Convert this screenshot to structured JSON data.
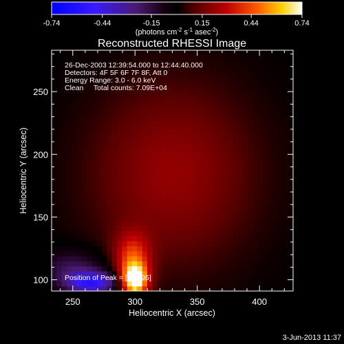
{
  "chart_data": {
    "type": "heatmap",
    "title": "Reconstructed RHESSI Image",
    "xlabel": "Heliocentric X (arcsec)",
    "ylabel": "Heliocentric Y (arcsec)",
    "xlim": [
      233,
      427
    ],
    "ylim": [
      91,
      283
    ],
    "x_ticks": [
      250,
      300,
      350,
      400
    ],
    "y_ticks": [
      100,
      150,
      200,
      250
    ],
    "colorbar": {
      "ticks": [
        "-0.74",
        "-0.44",
        "-0.15",
        "0.15",
        "0.44",
        "0.74"
      ],
      "range": [
        -0.74,
        0.74
      ],
      "unit_label": "(photons cm",
      "unit_sup1": "-2",
      "unit_mid": " s",
      "unit_sup2": "-1",
      "unit_mid2": " asec",
      "unit_sup3": "-2",
      "unit_end": ")"
    },
    "annotations": [
      "26-Dec-2003 12:39:54.000 to 12:44:40.000",
      "Detectors: 4F 5F 6F 7F 8F, Att 0",
      "Energy Range: 3.0 - 6.0 keV",
      "Clean     Total counts: 7.09E+04"
    ],
    "peak": {
      "label": "Position of Peak = [298,95]",
      "x": 298,
      "y": 95
    },
    "sources": [
      {
        "x": 300,
        "y": 100,
        "sx": 7,
        "sy": 9,
        "amp": 0.74
      },
      {
        "x": 298,
        "y": 118,
        "sx": 10,
        "sy": 14,
        "amp": 0.35
      },
      {
        "x": 330,
        "y": 185,
        "sx": 45,
        "sy": 50,
        "amp": 0.2
      },
      {
        "x": 265,
        "y": 98,
        "sx": 14,
        "sy": 6,
        "amp": -0.55
      },
      {
        "x": 250,
        "y": 110,
        "sx": 18,
        "sy": 10,
        "amp": -0.2
      }
    ],
    "footer_date": "3-Jun-2013 11:37"
  }
}
